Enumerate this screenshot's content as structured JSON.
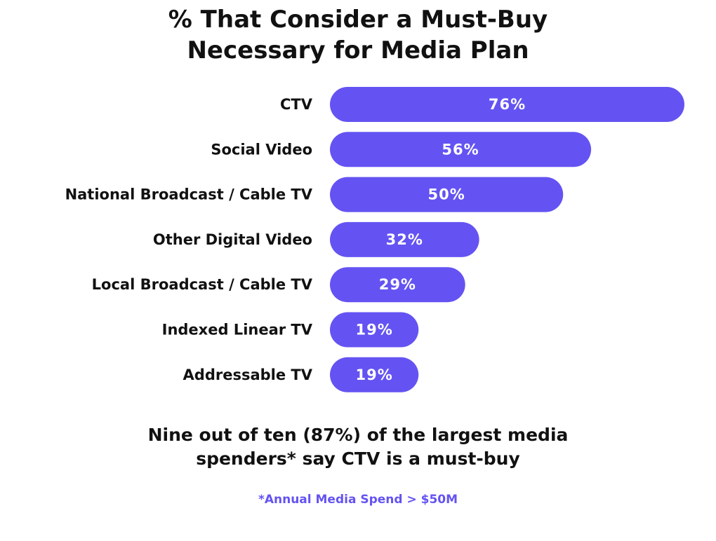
{
  "chart_data": {
    "type": "bar",
    "orientation": "horizontal",
    "title": "% That Consider a Must-Buy Necessary for Media Plan",
    "title_lines": [
      "% That Consider a Must-Buy",
      "Necessary for Media Plan"
    ],
    "categories": [
      "CTV",
      "Social Video",
      "National Broadcast / Cable TV",
      "Other Digital Video",
      "Local Broadcast / Cable TV",
      "Indexed Linear TV",
      "Addressable TV"
    ],
    "values": [
      76,
      56,
      50,
      32,
      29,
      19,
      19
    ],
    "value_labels": [
      "76%",
      "56%",
      "50%",
      "32%",
      "29%",
      "19%",
      "19%"
    ],
    "unit": "%",
    "xlim": [
      0,
      76
    ],
    "grid": false,
    "legend": "none",
    "bar_color": "#6453F2"
  },
  "footnote": {
    "line1": "Nine out of ten (87%) of the largest media",
    "line2": "spenders* say CTV is a must-buy",
    "small": "*Annual Media Spend > $50M",
    "small_color": "#6453F2"
  }
}
